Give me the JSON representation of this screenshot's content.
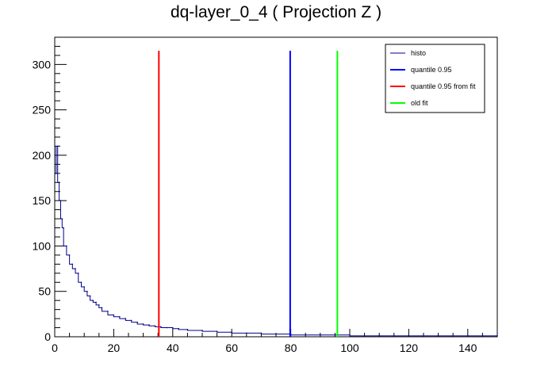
{
  "chart_data": {
    "type": "line",
    "title": "dq-layer_0_4 ( Projection Z )",
    "xlabel": "",
    "ylabel": "",
    "xlim": [
      0,
      150
    ],
    "ylim": [
      0,
      330
    ],
    "x_ticks": [
      0,
      20,
      40,
      60,
      80,
      100,
      120,
      140
    ],
    "y_ticks": [
      0,
      50,
      100,
      150,
      200,
      250,
      300
    ],
    "grid": false,
    "legend_position": "top-right",
    "histogram": {
      "name": "histo",
      "color": "#00008b",
      "x": [
        0.5,
        1,
        1.5,
        2,
        2.5,
        3,
        4,
        5,
        6,
        7,
        8,
        9,
        10,
        11,
        12,
        13,
        14,
        15,
        16,
        18,
        20,
        22,
        24,
        26,
        28,
        30,
        32,
        34,
        36,
        38,
        40,
        42,
        45,
        50,
        55,
        60,
        65,
        70,
        75,
        80,
        85,
        90,
        95,
        100,
        110,
        120,
        130,
        140,
        150
      ],
      "y": [
        180,
        210,
        170,
        150,
        130,
        120,
        100,
        90,
        80,
        75,
        70,
        60,
        55,
        50,
        45,
        40,
        38,
        35,
        32,
        28,
        24,
        22,
        20,
        18,
        16,
        14,
        13,
        12,
        11,
        10,
        10,
        9,
        8,
        7,
        6,
        5,
        4,
        4,
        3,
        3,
        2,
        2,
        2,
        2,
        1,
        1,
        1,
        1,
        1
      ]
    },
    "vertical_lines": [
      {
        "name": "quantile 0.95",
        "x": 79.8,
        "color": "#0000ff"
      },
      {
        "name": "quantile 0.95 from fit",
        "x": 35.3,
        "color": "#ff0000"
      },
      {
        "name": "old fit",
        "x": 95.8,
        "color": "#00ff00"
      }
    ],
    "vline_top": 315,
    "legend": [
      {
        "label": "histo",
        "color": "#00008b"
      },
      {
        "label": "quantile 0.95",
        "color": "#0000ff"
      },
      {
        "label": "quantile 0.95 from fit",
        "color": "#ff0000"
      },
      {
        "label": "old fit",
        "color": "#00ff00"
      }
    ]
  }
}
